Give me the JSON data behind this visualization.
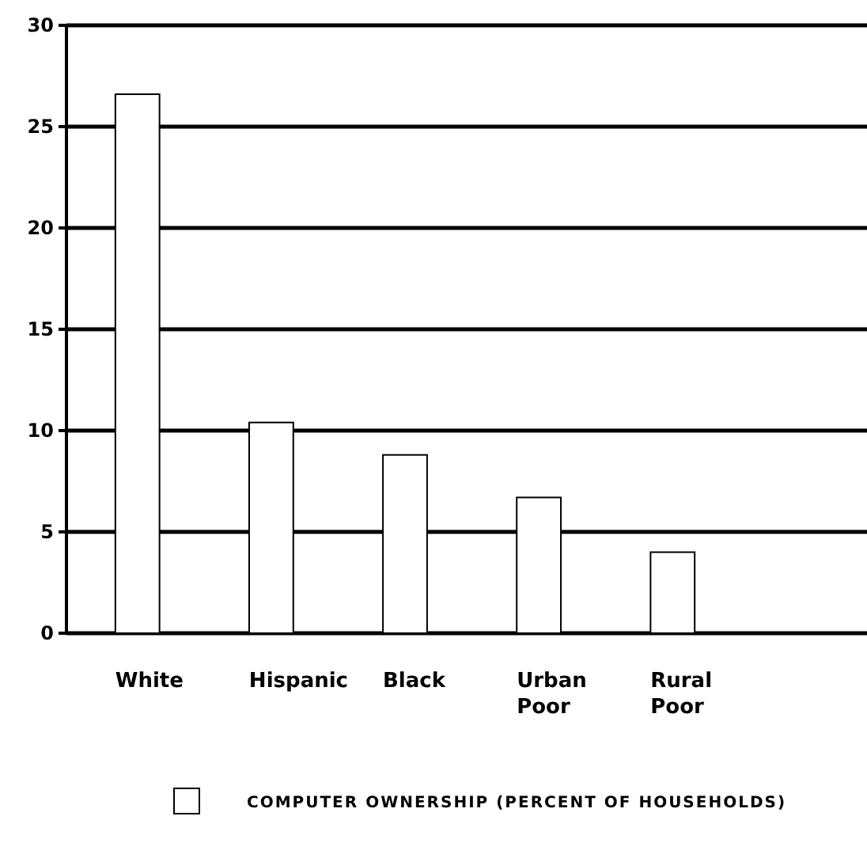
{
  "chart_data": {
    "type": "bar",
    "categories": [
      "White",
      "Hispanic",
      "Black",
      "Urban Poor",
      "Rural Poor"
    ],
    "series": [
      {
        "name": "COMPUTER OWNERSHIP (PERCENT OF HOUSEHOLDS)",
        "color": "#ffffff",
        "values": [
          26.6,
          10.4,
          8.8,
          6.7,
          4.0
        ]
      }
    ],
    "ylim": [
      0,
      30
    ],
    "yticks": [
      0,
      5,
      10,
      15,
      20,
      25,
      30
    ],
    "grid": "y",
    "legend": "bottom"
  }
}
